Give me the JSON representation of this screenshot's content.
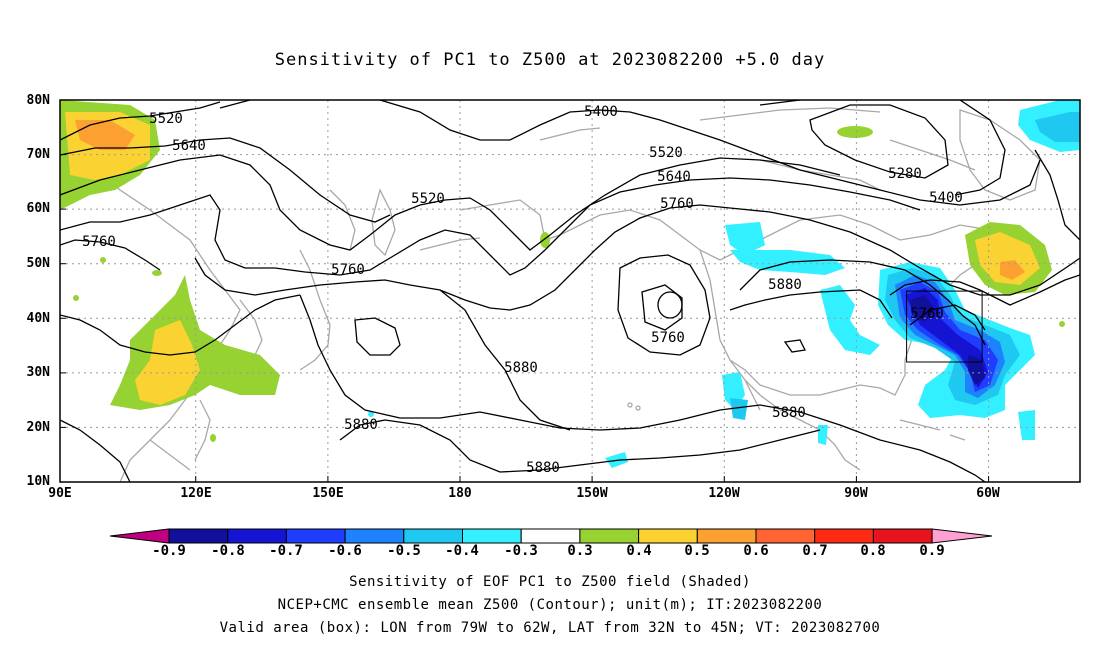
{
  "title": "Sensitivity of PC1 to Z500 at 2023082200 +5.0 day",
  "lat_labels": [
    "80N",
    "70N",
    "60N",
    "50N",
    "40N",
    "30N",
    "20N",
    "10N"
  ],
  "lon_labels": [
    "90E",
    "120E",
    "150E",
    "180",
    "150W",
    "120W",
    "90W",
    "60W"
  ],
  "contour_labels": [
    {
      "text": "5520",
      "id": "c5520-a"
    },
    {
      "text": "5640",
      "id": "c5640-a"
    },
    {
      "text": "5760",
      "id": "c5760-a"
    },
    {
      "text": "5520",
      "id": "c5520-b"
    },
    {
      "text": "5760",
      "id": "c5760-b"
    },
    {
      "text": "5400",
      "id": "c5400-a"
    },
    {
      "text": "5520",
      "id": "c5520-c"
    },
    {
      "text": "5640",
      "id": "c5640-b"
    },
    {
      "text": "5760",
      "id": "c5760-c"
    },
    {
      "text": "5280",
      "id": "c5280-a"
    },
    {
      "text": "5400",
      "id": "c5400-b"
    },
    {
      "text": "5880",
      "id": "c5880-a"
    },
    {
      "text": "5760",
      "id": "c5760-d"
    },
    {
      "text": "5760",
      "id": "c5760-e"
    },
    {
      "text": "5880",
      "id": "c5880-b"
    },
    {
      "text": "5880",
      "id": "c5880-c"
    },
    {
      "text": "5880",
      "id": "c5880-d"
    },
    {
      "text": "5880",
      "id": "c5880-e"
    }
  ],
  "colorbar": {
    "labels": [
      "-0.9",
      "-0.8",
      "-0.7",
      "-0.6",
      "-0.5",
      "-0.4",
      "-0.3",
      "0.3",
      "0.4",
      "0.5",
      "0.6",
      "0.7",
      "0.8",
      "0.9"
    ],
    "colors": [
      "#c00080",
      "#10109a",
      "#1414d2",
      "#1f3cff",
      "#1e82ff",
      "#1ec8f0",
      "#32f0ff",
      "#ffffff",
      "#96d232",
      "#fad232",
      "#fda032",
      "#ff6432",
      "#ff2a14",
      "#e6141e",
      "#ffa0d2"
    ]
  },
  "captions": {
    "line1": "Sensitivity of EOF PC1 to Z500 field (Shaded)",
    "line2": "NCEP+CMC ensemble mean Z500 (Contour); unit(m); IT:2023082200",
    "line3": "Valid area (box): LON from 79W to 62W, LAT from 32N to 45N; VT: 2023082700"
  }
}
